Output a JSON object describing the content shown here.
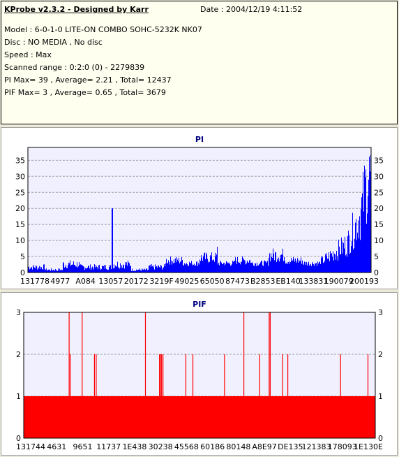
{
  "header": {
    "title": "KProbe v2.3.2 - Designed by Karr",
    "date": "Date : 2004/12/19 4:11:52",
    "model": "Model : 6-0-1-0 LITE-ON COMBO SOHC-5232K NK07",
    "disc": "Disc : NO MEDIA , No disc",
    "speed": "Speed : Max",
    "scanned_range": "Scanned range : 0:2:0 (0) - 2279839",
    "pi_summary": "PI Max= 39 , Average= 2.21 , Total= 12437",
    "pif_summary": "PIF Max= 3 , Average= 0.65 , Total= 3679"
  },
  "colors": {
    "pi": "#0000ff",
    "pif": "#ff0000",
    "plot_bg": "#f0f0ff",
    "grid": "#a0a0a0"
  },
  "chart_data": [
    {
      "type": "bar",
      "title": "PI",
      "ylim": [
        0,
        39
      ],
      "yticks": [
        0,
        5,
        10,
        15,
        20,
        25,
        30,
        35
      ],
      "grid": true,
      "xtick_labels": [
        "131778",
        "4977",
        "A084",
        "13057",
        "20172",
        "3219F",
        "49025",
        "65050",
        "87473",
        "B2853",
        "EB140",
        "133831",
        "190079",
        "200193"
      ],
      "baseline_values": [
        2,
        1,
        3,
        2,
        2,
        3,
        1,
        2,
        3,
        2,
        4,
        2,
        3,
        2,
        5,
        3,
        2,
        3,
        4,
        2
      ],
      "spikes": [
        {
          "x": 0.245,
          "value": 20
        },
        {
          "x": 0.55,
          "value": 8
        }
      ],
      "tail_profile": [
        {
          "x": 0.86,
          "value": 5
        },
        {
          "x": 0.93,
          "value": 12
        },
        {
          "x": 0.97,
          "value": 25
        },
        {
          "x": 0.985,
          "value": 37
        },
        {
          "x": 0.995,
          "value": 39
        }
      ]
    },
    {
      "type": "bar",
      "title": "PIF",
      "ylim": [
        0,
        3
      ],
      "yticks": [
        0,
        1,
        2,
        3
      ],
      "grid": true,
      "xtick_labels": [
        "131744",
        "4631",
        "9651",
        "11737",
        "1E438",
        "30238",
        "45568",
        "60186",
        "80148",
        "A8E97",
        "DE135",
        "121383",
        "178093",
        "1E130E"
      ],
      "baseline_value": 1,
      "spikes": [
        {
          "x": 0.128,
          "value": 3
        },
        {
          "x": 0.131,
          "value": 2
        },
        {
          "x": 0.165,
          "value": 3
        },
        {
          "x": 0.2,
          "value": 2
        },
        {
          "x": 0.205,
          "value": 2
        },
        {
          "x": 0.345,
          "value": 3
        },
        {
          "x": 0.385,
          "value": 2
        },
        {
          "x": 0.388,
          "value": 2
        },
        {
          "x": 0.391,
          "value": 2
        },
        {
          "x": 0.395,
          "value": 2
        },
        {
          "x": 0.46,
          "value": 2
        },
        {
          "x": 0.48,
          "value": 2
        },
        {
          "x": 0.57,
          "value": 2
        },
        {
          "x": 0.625,
          "value": 3
        },
        {
          "x": 0.67,
          "value": 2
        },
        {
          "x": 0.697,
          "value": 3
        },
        {
          "x": 0.7,
          "value": 3
        },
        {
          "x": 0.735,
          "value": 2
        },
        {
          "x": 0.75,
          "value": 2
        },
        {
          "x": 0.9,
          "value": 2
        },
        {
          "x": 0.978,
          "value": 2
        }
      ]
    }
  ]
}
